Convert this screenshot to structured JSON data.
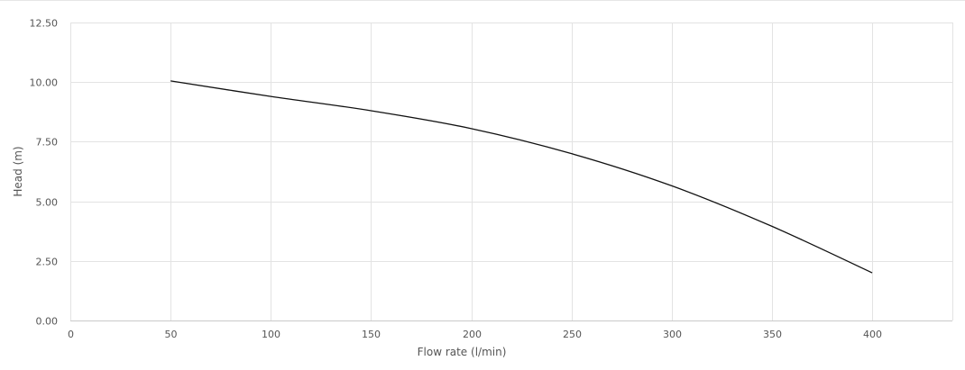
{
  "chart_data": {
    "type": "line",
    "title": "",
    "xlabel": "Flow rate (l/min)",
    "ylabel": "Head (m)",
    "xlim": [
      0,
      440
    ],
    "ylim": [
      0,
      12.5
    ],
    "x_ticks": [
      "0",
      "50",
      "100",
      "150",
      "200",
      "250",
      "300",
      "350",
      "400"
    ],
    "y_ticks": [
      "0.00",
      "2.50",
      "5.00",
      "7.50",
      "10.00",
      "12.50"
    ],
    "grid": true,
    "legend": "none",
    "series": [
      {
        "color": "#111111",
        "x": [
          50,
          100,
          150,
          200,
          250,
          300,
          350,
          400
        ],
        "y": [
          10.05,
          9.4,
          8.8,
          8.05,
          7.0,
          5.65,
          3.95,
          2.0
        ]
      }
    ]
  }
}
